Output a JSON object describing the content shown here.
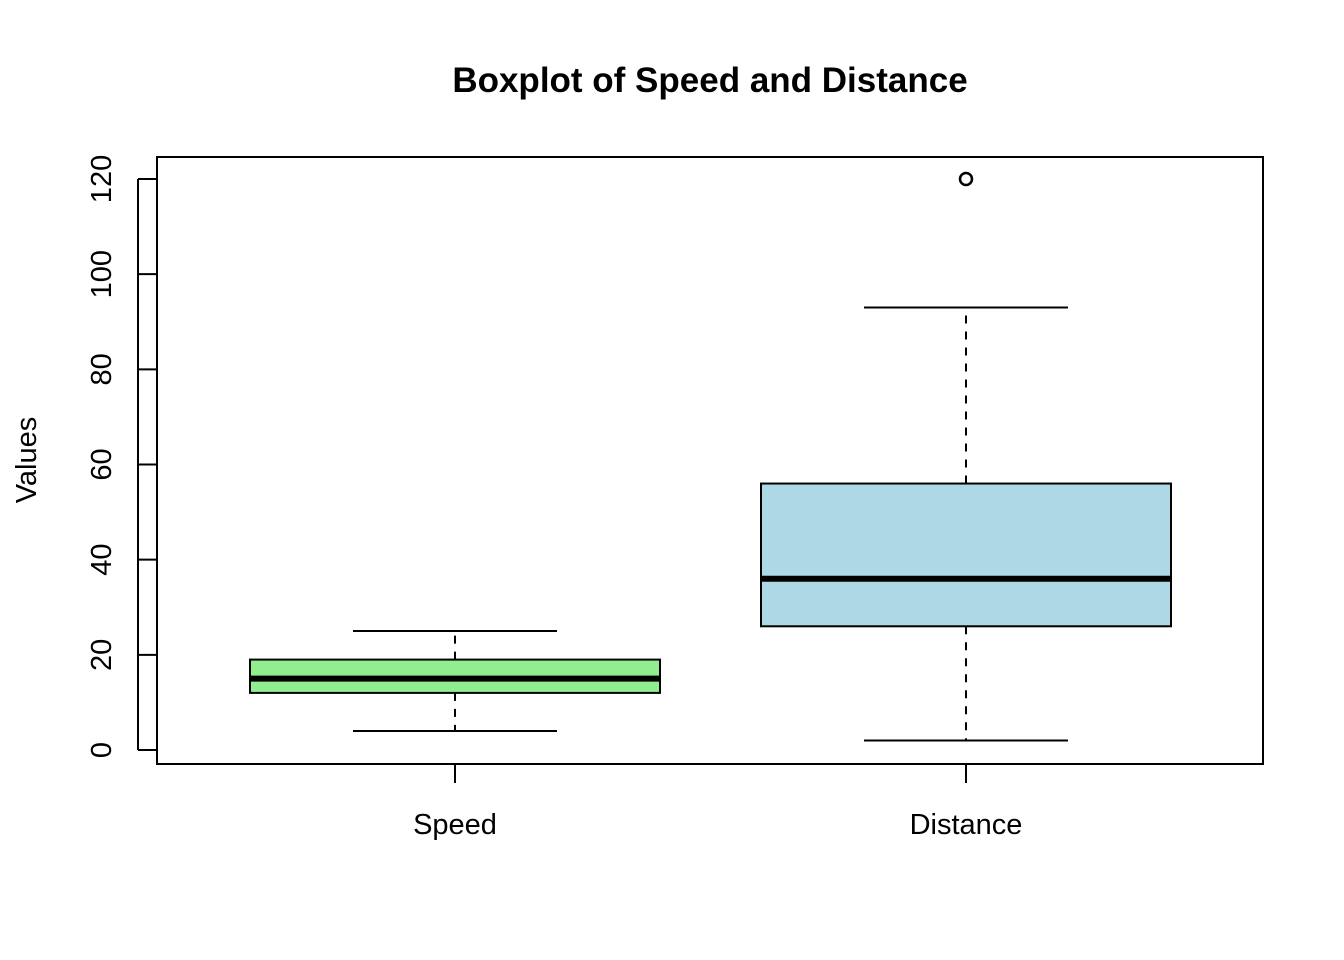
{
  "chart_data": {
    "type": "boxplot",
    "title": "Boxplot of Speed and Distance",
    "xlabel": "",
    "ylabel": "Values",
    "ylim": [
      0,
      120
    ],
    "yticks": [
      0,
      20,
      40,
      60,
      80,
      100,
      120
    ],
    "ytick_labels": [
      "0",
      "20",
      "40",
      "60",
      "80",
      "100",
      "120"
    ],
    "grid": false,
    "categories": [
      "Speed",
      "Distance"
    ],
    "boxes": [
      {
        "label": "Speed",
        "fill": "#90ee90",
        "whisker_low": 4,
        "q1": 12,
        "median": 15,
        "q3": 19,
        "whisker_high": 25,
        "outliers": []
      },
      {
        "label": "Distance",
        "fill": "#add8e6",
        "whisker_low": 2,
        "q1": 26,
        "median": 36,
        "q3": 56,
        "whisker_high": 93,
        "outliers": [
          120
        ]
      }
    ]
  }
}
